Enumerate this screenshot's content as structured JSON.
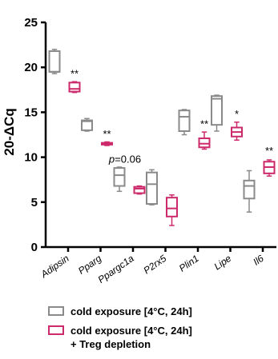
{
  "chart_data": {
    "type": "box",
    "ylabel": "20-ΔCq",
    "ylim": [
      0,
      25
    ],
    "yticks": [
      0,
      5,
      10,
      15,
      20,
      25
    ],
    "grid": false,
    "legend_position": "bottom",
    "colors": {
      "control": "#8a8a8a",
      "treg": "#cc2a6a"
    },
    "categories": [
      "Adipsin",
      "Pparg",
      "Ppargc1a",
      "P2rx5",
      "Plin1",
      "Lipe",
      "Il6"
    ],
    "series": [
      {
        "name": "cold exposure [4°C, 24h]",
        "boxes": [
          {
            "min": 19.3,
            "q1": 19.5,
            "median": 19.5,
            "q3": 21.8,
            "max": 22.0
          },
          {
            "min": 12.9,
            "q1": 13.0,
            "median": 14.0,
            "q3": 14.1,
            "max": 14.3
          },
          {
            "min": 6.2,
            "q1": 6.8,
            "median": 8.0,
            "q3": 8.8,
            "max": 8.9
          },
          {
            "min": 4.7,
            "q1": 4.8,
            "median": 7.0,
            "q3": 8.3,
            "max": 8.6
          },
          {
            "min": 12.5,
            "q1": 12.9,
            "median": 14.5,
            "q3": 15.2,
            "max": 15.3
          },
          {
            "min": 12.9,
            "q1": 13.6,
            "median": 16.5,
            "q3": 16.8,
            "max": 16.9
          },
          {
            "min": 3.9,
            "q1": 5.4,
            "median": 6.8,
            "q3": 7.4,
            "max": 8.5
          }
        ]
      },
      {
        "name": "cold exposure [4°C, 24h]\n+ Treg depletion",
        "boxes": [
          {
            "min": 17.2,
            "q1": 17.3,
            "median": 17.6,
            "q3": 18.3,
            "max": 18.4
          },
          {
            "min": 11.3,
            "q1": 11.4,
            "median": 11.5,
            "q3": 11.6,
            "max": 11.7
          },
          {
            "min": 5.9,
            "q1": 6.0,
            "median": 6.5,
            "q3": 6.7,
            "max": 6.8
          },
          {
            "min": 2.4,
            "q1": 3.4,
            "median": 4.3,
            "q3": 5.5,
            "max": 5.8
          },
          {
            "min": 10.9,
            "q1": 11.1,
            "median": 11.5,
            "q3": 12.1,
            "max": 12.8
          },
          {
            "min": 11.9,
            "q1": 12.3,
            "median": 12.8,
            "q3": 13.3,
            "max": 13.9
          },
          {
            "min": 7.9,
            "q1": 8.2,
            "median": 8.9,
            "q3": 9.5,
            "max": 9.7
          }
        ]
      }
    ],
    "annotations": [
      {
        "category": "Adipsin",
        "text": "**",
        "y": 18.9
      },
      {
        "category": "Pparg",
        "text": "**",
        "y": 12.2
      },
      {
        "category": "Ppargc1a",
        "text": "p=0.06",
        "y": 9.4
      },
      {
        "category": "Plin1",
        "text": "**",
        "y": 13.3
      },
      {
        "category": "Lipe",
        "text": "*",
        "y": 14.4
      },
      {
        "category": "Il6",
        "text": "**",
        "y": 10.3
      }
    ]
  }
}
